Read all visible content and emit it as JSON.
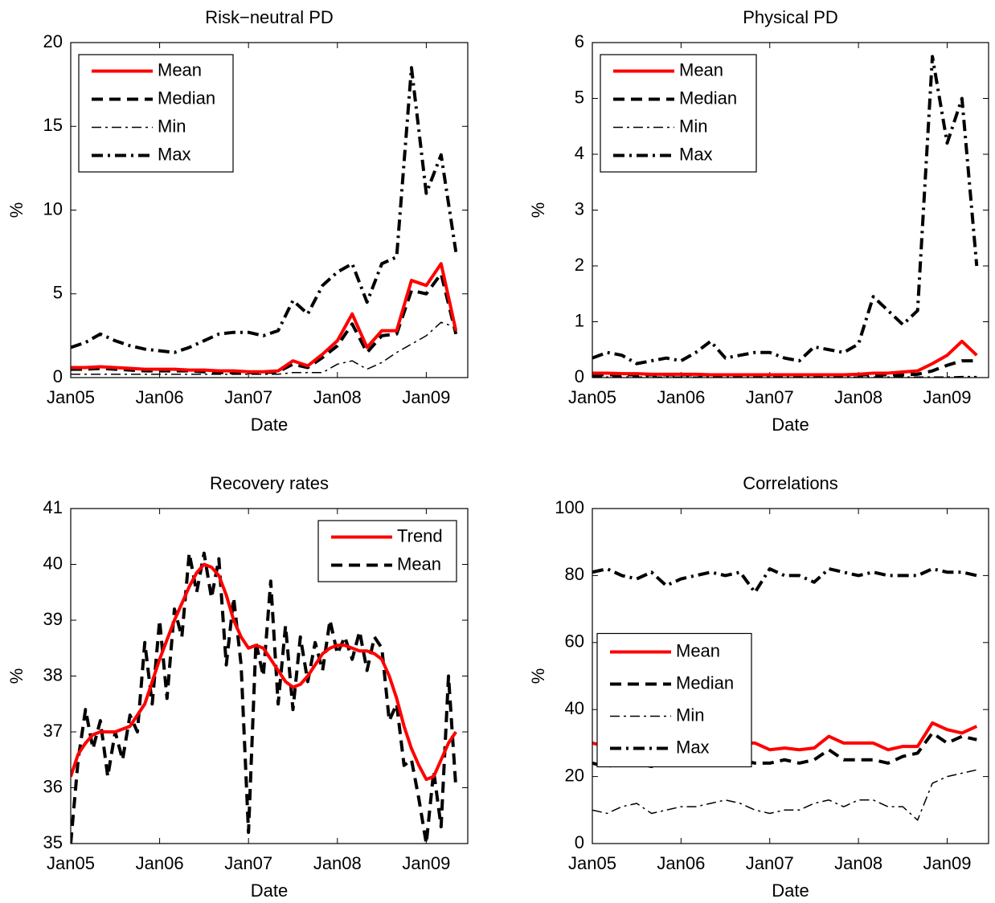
{
  "chart_data": [
    {
      "type": "line",
      "title": "Risk−neutral PD",
      "xlabel": "Date",
      "ylabel": "%",
      "legend": "upper left",
      "x": [
        0,
        2,
        4,
        6,
        8,
        10,
        12,
        14,
        16,
        18,
        20,
        22,
        24,
        26,
        28,
        30,
        32,
        34,
        36,
        38,
        40,
        42,
        44,
        46,
        48,
        50,
        52
      ],
      "xlim": [
        0,
        53.6
      ],
      "xticks": [
        {
          "value": 0,
          "label": "Jan05"
        },
        {
          "value": 12,
          "label": "Jan06"
        },
        {
          "value": 24,
          "label": "Jan07"
        },
        {
          "value": 36,
          "label": "Jan08"
        },
        {
          "value": 48,
          "label": "Jan09"
        }
      ],
      "ylim": [
        0,
        20
      ],
      "yticks": [
        0,
        5,
        10,
        15,
        20
      ],
      "series": [
        {
          "name": "Mean",
          "color": "#ff0000",
          "style": "solid",
          "values": [
            0.6,
            0.6,
            0.65,
            0.6,
            0.55,
            0.5,
            0.5,
            0.5,
            0.45,
            0.45,
            0.4,
            0.4,
            0.35,
            0.35,
            0.4,
            1.0,
            0.7,
            1.4,
            2.2,
            3.8,
            1.8,
            2.8,
            2.8,
            5.8,
            5.5,
            6.8,
            2.8
          ]
        },
        {
          "name": "Median",
          "color": "#000000",
          "style": "dashed",
          "values": [
            0.5,
            0.5,
            0.55,
            0.5,
            0.45,
            0.4,
            0.4,
            0.4,
            0.4,
            0.35,
            0.3,
            0.3,
            0.3,
            0.3,
            0.35,
            0.8,
            0.6,
            1.2,
            1.9,
            3.2,
            1.5,
            2.5,
            2.6,
            5.2,
            5.0,
            6.2,
            2.6
          ]
        },
        {
          "name": "Min",
          "color": "#000000",
          "style": "dashdot-thin",
          "values": [
            0.2,
            0.2,
            0.2,
            0.2,
            0.2,
            0.2,
            0.2,
            0.2,
            0.2,
            0.2,
            0.2,
            0.2,
            0.2,
            0.2,
            0.2,
            0.3,
            0.3,
            0.3,
            0.8,
            1.0,
            0.5,
            0.9,
            1.5,
            2.0,
            2.5,
            3.3,
            3.0
          ]
        },
        {
          "name": "Max",
          "color": "#000000",
          "style": "dashdot",
          "values": [
            1.8,
            2.1,
            2.6,
            2.2,
            1.9,
            1.7,
            1.6,
            1.5,
            1.8,
            2.2,
            2.6,
            2.7,
            2.7,
            2.5,
            2.8,
            4.6,
            3.8,
            5.5,
            6.3,
            6.8,
            4.5,
            6.8,
            7.2,
            18.5,
            11.0,
            13.3,
            7.5
          ]
        }
      ]
    },
    {
      "type": "line",
      "title": "Physical PD",
      "xlabel": "Date",
      "ylabel": "%",
      "legend": "upper left",
      "x": [
        0,
        2,
        4,
        6,
        8,
        10,
        12,
        14,
        16,
        18,
        20,
        22,
        24,
        26,
        28,
        30,
        32,
        34,
        36,
        38,
        40,
        42,
        44,
        46,
        48,
        50,
        52
      ],
      "xlim": [
        0,
        53.6
      ],
      "xticks": [
        {
          "value": 0,
          "label": "Jan05"
        },
        {
          "value": 12,
          "label": "Jan06"
        },
        {
          "value": 24,
          "label": "Jan07"
        },
        {
          "value": 36,
          "label": "Jan08"
        },
        {
          "value": 48,
          "label": "Jan09"
        }
      ],
      "ylim": [
        0,
        6
      ],
      "yticks": [
        0,
        1,
        2,
        3,
        4,
        5,
        6
      ],
      "series": [
        {
          "name": "Mean",
          "color": "#ff0000",
          "style": "solid",
          "values": [
            0.08,
            0.08,
            0.07,
            0.07,
            0.06,
            0.06,
            0.06,
            0.06,
            0.05,
            0.05,
            0.05,
            0.05,
            0.05,
            0.05,
            0.05,
            0.05,
            0.05,
            0.05,
            0.06,
            0.08,
            0.08,
            0.1,
            0.12,
            0.25,
            0.4,
            0.65,
            0.4
          ]
        },
        {
          "name": "Median",
          "color": "#000000",
          "style": "dashed",
          "values": [
            0.05,
            0.05,
            0.05,
            0.05,
            0.05,
            0.05,
            0.05,
            0.05,
            0.05,
            0.05,
            0.05,
            0.05,
            0.05,
            0.05,
            0.05,
            0.05,
            0.05,
            0.05,
            0.05,
            0.05,
            0.05,
            0.05,
            0.06,
            0.12,
            0.22,
            0.3,
            0.3
          ]
        },
        {
          "name": "Min",
          "color": "#000000",
          "style": "dashdot-thin",
          "values": [
            0.01,
            0.01,
            0.01,
            0.01,
            0.01,
            0.01,
            0.01,
            0.01,
            0.01,
            0.01,
            0.01,
            0.01,
            0.01,
            0.01,
            0.01,
            0.01,
            0.01,
            0.01,
            0.01,
            0.01,
            0.01,
            0.01,
            0.01,
            0.01,
            0.01,
            0.02,
            0.02
          ]
        },
        {
          "name": "Max",
          "color": "#000000",
          "style": "dashdot",
          "values": [
            0.35,
            0.45,
            0.4,
            0.25,
            0.3,
            0.35,
            0.3,
            0.45,
            0.65,
            0.35,
            0.4,
            0.45,
            0.45,
            0.35,
            0.3,
            0.55,
            0.5,
            0.45,
            0.6,
            1.45,
            1.2,
            0.95,
            1.2,
            5.75,
            4.2,
            5.0,
            2.0
          ]
        }
      ]
    },
    {
      "type": "line",
      "title": "Recovery rates",
      "xlabel": "Date",
      "ylabel": "%",
      "legend": "upper right",
      "x": [
        0,
        1,
        2,
        3,
        4,
        5,
        6,
        7,
        8,
        9,
        10,
        11,
        12,
        13,
        14,
        15,
        16,
        17,
        18,
        19,
        20,
        21,
        22,
        23,
        24,
        25,
        26,
        27,
        28,
        29,
        30,
        31,
        32,
        33,
        34,
        35,
        36,
        37,
        38,
        39,
        40,
        41,
        42,
        43,
        44,
        45,
        46,
        47,
        48,
        49,
        50,
        51,
        52
      ],
      "xlim": [
        0,
        53.6
      ],
      "xticks": [
        {
          "value": 0,
          "label": "Jan05"
        },
        {
          "value": 12,
          "label": "Jan06"
        },
        {
          "value": 24,
          "label": "Jan07"
        },
        {
          "value": 36,
          "label": "Jan08"
        },
        {
          "value": 48,
          "label": "Jan09"
        }
      ],
      "ylim": [
        35,
        41
      ],
      "yticks": [
        35,
        36,
        37,
        38,
        39,
        40,
        41
      ],
      "series": [
        {
          "name": "Trend",
          "color": "#ff0000",
          "style": "solid",
          "values": [
            36.2,
            36.6,
            36.8,
            36.95,
            37.0,
            37.0,
            37.0,
            37.05,
            37.1,
            37.3,
            37.5,
            37.9,
            38.3,
            38.65,
            39.0,
            39.3,
            39.6,
            39.85,
            40.0,
            39.95,
            39.8,
            39.45,
            39.0,
            38.7,
            38.5,
            38.55,
            38.5,
            38.3,
            38.1,
            37.9,
            37.8,
            37.85,
            38.0,
            38.2,
            38.4,
            38.5,
            38.55,
            38.55,
            38.5,
            38.45,
            38.45,
            38.4,
            38.3,
            38.0,
            37.6,
            37.1,
            36.7,
            36.4,
            36.15,
            36.2,
            36.5,
            36.8,
            37.0
          ]
        },
        {
          "name": "Mean",
          "color": "#000000",
          "style": "dashed",
          "values": [
            35.0,
            36.5,
            37.4,
            36.7,
            37.2,
            36.2,
            37.0,
            36.5,
            37.3,
            37.0,
            38.6,
            37.5,
            39.0,
            37.6,
            39.2,
            38.7,
            40.2,
            39.5,
            40.2,
            39.4,
            40.1,
            38.2,
            39.4,
            38.2,
            35.2,
            38.6,
            38.0,
            39.7,
            37.5,
            38.9,
            37.4,
            38.7,
            37.9,
            38.6,
            38.1,
            39.0,
            38.4,
            38.7,
            38.3,
            38.8,
            38.1,
            38.7,
            38.5,
            37.2,
            37.5,
            36.4,
            36.5,
            35.8,
            35.0,
            36.3,
            35.3,
            38.0,
            36.0
          ]
        }
      ]
    },
    {
      "type": "line",
      "title": "Correlations",
      "xlabel": "Date",
      "ylabel": "%",
      "legend": "center left",
      "x": [
        0,
        2,
        4,
        6,
        8,
        10,
        12,
        14,
        16,
        18,
        20,
        22,
        24,
        26,
        28,
        30,
        32,
        34,
        36,
        38,
        40,
        42,
        44,
        46,
        48,
        50,
        52
      ],
      "xlim": [
        0,
        53.6
      ],
      "xticks": [
        {
          "value": 0,
          "label": "Jan05"
        },
        {
          "value": 12,
          "label": "Jan06"
        },
        {
          "value": 24,
          "label": "Jan07"
        },
        {
          "value": 36,
          "label": "Jan08"
        },
        {
          "value": 48,
          "label": "Jan09"
        }
      ],
      "ylim": [
        0,
        100
      ],
      "yticks": [
        0,
        20,
        40,
        60,
        80,
        100
      ],
      "series": [
        {
          "name": "Mean",
          "color": "#ff0000",
          "style": "solid",
          "values": [
            30,
            29,
            30,
            30,
            29.5,
            30,
            29.5,
            29,
            29.5,
            32,
            30,
            30,
            28,
            28.5,
            28,
            28.5,
            32,
            30,
            30,
            30,
            28,
            29,
            29,
            36,
            34,
            33,
            35
          ]
        },
        {
          "name": "Median",
          "color": "#000000",
          "style": "dashed",
          "values": [
            24,
            23,
            24,
            24,
            23,
            25,
            24,
            24,
            25,
            27,
            25,
            24,
            24,
            25,
            24,
            25,
            28,
            25,
            25,
            25,
            24,
            26,
            27,
            33,
            30,
            32,
            31
          ]
        },
        {
          "name": "Min",
          "color": "#000000",
          "style": "dashdot-thin",
          "values": [
            10,
            9,
            11,
            12,
            9,
            10,
            11,
            11,
            12,
            13,
            12,
            10,
            9,
            10,
            10,
            12,
            13,
            11,
            13,
            13,
            11,
            11,
            7,
            18,
            20,
            21,
            22
          ]
        },
        {
          "name": "Max",
          "color": "#000000",
          "style": "dashdot",
          "values": [
            81,
            82,
            80,
            79,
            81,
            77,
            79,
            80,
            81,
            80,
            81,
            75,
            82,
            80,
            80,
            78,
            82,
            81,
            80,
            81,
            80,
            80,
            80,
            82,
            81,
            81,
            80
          ]
        }
      ]
    }
  ]
}
